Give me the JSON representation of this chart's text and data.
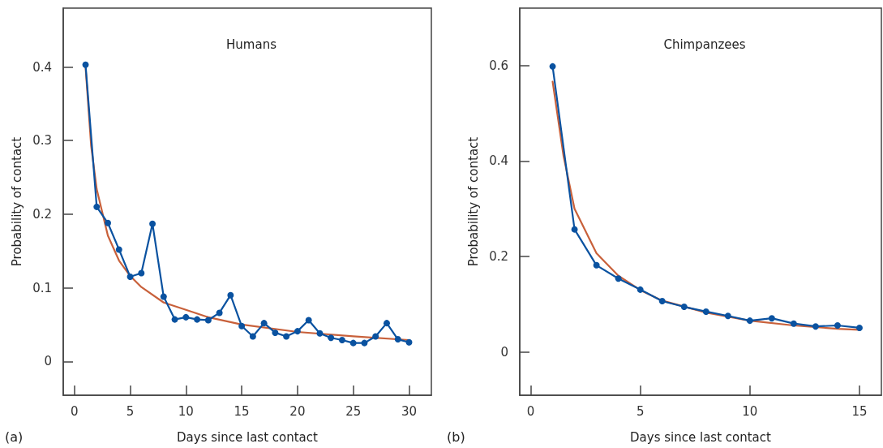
{
  "chart_data": [
    {
      "type": "line",
      "title": "Humans",
      "xlabel": "Days since last contact",
      "ylabel": "Probability of contact",
      "annotations": [
        "(a)"
      ],
      "xlim": [
        -1,
        32
      ],
      "xticks": [
        0,
        5,
        10,
        15,
        20,
        25,
        30
      ],
      "ylim": [
        -0.046,
        0.48
      ],
      "yticks": [
        0,
        0.1,
        0.2,
        0.3,
        0.4
      ],
      "line_style": "solid",
      "series": [
        {
          "color": "#0a52a0",
          "marker": "circle",
          "x": [
            1,
            2,
            3,
            4,
            5,
            6,
            7,
            8,
            9,
            10,
            11,
            12,
            13,
            14,
            15,
            16,
            17,
            18,
            19,
            20,
            21,
            22,
            23,
            24,
            25,
            26,
            27,
            28,
            29,
            30
          ],
          "values": [
            0.403,
            0.21,
            0.188,
            0.152,
            0.115,
            0.12,
            0.187,
            0.088,
            0.057,
            0.06,
            0.057,
            0.056,
            0.066,
            0.09,
            0.048,
            0.034,
            0.052,
            0.039,
            0.034,
            0.041,
            0.056,
            0.038,
            0.032,
            0.029,
            0.025,
            0.025,
            0.034,
            0.052,
            0.03,
            0.026
          ]
        },
        {
          "color": "#c8603a",
          "marker": "none",
          "x": [
            1,
            1.5,
            2,
            3,
            4,
            5,
            6,
            8,
            10,
            12,
            15,
            20,
            25,
            30
          ],
          "values": [
            0.4,
            0.293,
            0.234,
            0.171,
            0.137,
            0.116,
            0.101,
            0.08,
            0.07,
            0.06,
            0.05,
            0.04,
            0.034,
            0.029
          ]
        }
      ]
    },
    {
      "type": "line",
      "title": "Chimpanzees",
      "xlabel": "Days since last contact",
      "ylabel": "Probability of contact",
      "annotations": [
        "(b)"
      ],
      "xlim": [
        -0.5,
        16
      ],
      "xticks": [
        0,
        5,
        10,
        15
      ],
      "ylim": [
        -0.09,
        0.72
      ],
      "yticks": [
        0,
        0.2,
        0.4,
        0.6
      ],
      "line_style": "solid",
      "series": [
        {
          "color": "#0a52a0",
          "marker": "circle",
          "x": [
            1,
            2,
            3,
            4,
            5,
            6,
            7,
            8,
            9,
            10,
            11,
            12,
            13,
            14,
            15
          ],
          "values": [
            0.598,
            0.257,
            0.182,
            0.154,
            0.131,
            0.107,
            0.095,
            0.085,
            0.076,
            0.066,
            0.071,
            0.06,
            0.054,
            0.056,
            0.051
          ]
        },
        {
          "color": "#c8603a",
          "marker": "none",
          "x": [
            1,
            1.5,
            2,
            3,
            4,
            5,
            6,
            8,
            10,
            12,
            14,
            15
          ],
          "values": [
            0.566,
            0.41,
            0.3,
            0.207,
            0.16,
            0.13,
            0.108,
            0.083,
            0.066,
            0.056,
            0.049,
            0.047
          ]
        }
      ]
    }
  ]
}
